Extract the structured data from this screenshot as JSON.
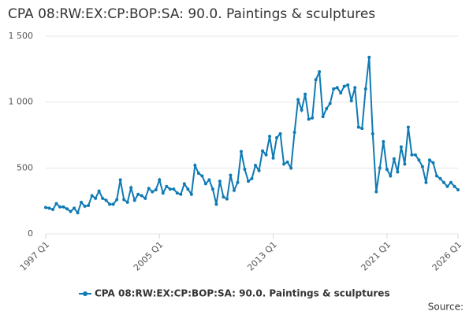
{
  "chart_data": {
    "type": "line",
    "title": "CPA 08:RW:EX:CP:BOP:SA: 90.0. Paintings & sculptures",
    "source": "Source:",
    "categories": [
      "1997 Q1",
      null,
      null,
      null,
      null,
      null,
      null,
      null,
      null,
      null,
      null,
      null,
      null,
      null,
      null,
      null,
      null,
      null,
      null,
      null,
      null,
      null,
      null,
      null,
      null,
      null,
      null,
      null,
      null,
      null,
      null,
      null,
      "2005 Q1",
      null,
      null,
      null,
      null,
      null,
      null,
      null,
      null,
      null,
      null,
      null,
      null,
      null,
      null,
      null,
      null,
      null,
      null,
      null,
      null,
      null,
      null,
      null,
      null,
      null,
      null,
      null,
      null,
      null,
      null,
      null,
      "2013 Q1",
      null,
      null,
      null,
      null,
      null,
      null,
      null,
      null,
      null,
      null,
      null,
      null,
      null,
      null,
      null,
      null,
      null,
      null,
      null,
      null,
      null,
      null,
      null,
      null,
      null,
      null,
      null,
      null,
      null,
      null,
      null,
      "2021 Q1",
      null,
      null,
      null,
      null,
      null,
      null,
      null,
      null,
      null,
      null,
      null,
      null,
      null,
      null,
      null,
      null,
      null,
      null,
      null,
      "2026 Q1"
    ],
    "series": [
      {
        "name": "CPA 08:RW:EX:CP:BOP:SA: 90.0. Paintings & sculptures",
        "color": "#0f7ab4",
        "values": [
          200,
          195,
          185,
          230,
          205,
          205,
          190,
          170,
          195,
          160,
          240,
          210,
          215,
          290,
          270,
          325,
          270,
          255,
          225,
          225,
          260,
          410,
          260,
          240,
          350,
          255,
          300,
          290,
          270,
          345,
          320,
          335,
          410,
          310,
          360,
          340,
          340,
          310,
          300,
          380,
          340,
          300,
          520,
          460,
          440,
          380,
          410,
          340,
          225,
          400,
          280,
          265,
          445,
          330,
          390,
          625,
          490,
          400,
          420,
          520,
          480,
          630,
          600,
          740,
          575,
          730,
          760,
          530,
          545,
          500,
          770,
          1020,
          940,
          1060,
          870,
          880,
          1170,
          1230,
          890,
          950,
          990,
          1100,
          1110,
          1070,
          1120,
          1130,
          1010,
          1110,
          810,
          800,
          1100,
          1340,
          760,
          320,
          500,
          700,
          490,
          440,
          570,
          470,
          660,
          530,
          810,
          600,
          600,
          560,
          510,
          390,
          560,
          540,
          440,
          420,
          390,
          360,
          390,
          360,
          335
        ]
      }
    ],
    "ylim": [
      0,
      1500
    ],
    "yticks": [
      0,
      500,
      {
        "value": 1000,
        "label": "1 000"
      },
      {
        "value": 1500,
        "label": "1 500"
      }
    ],
    "grid": true
  }
}
